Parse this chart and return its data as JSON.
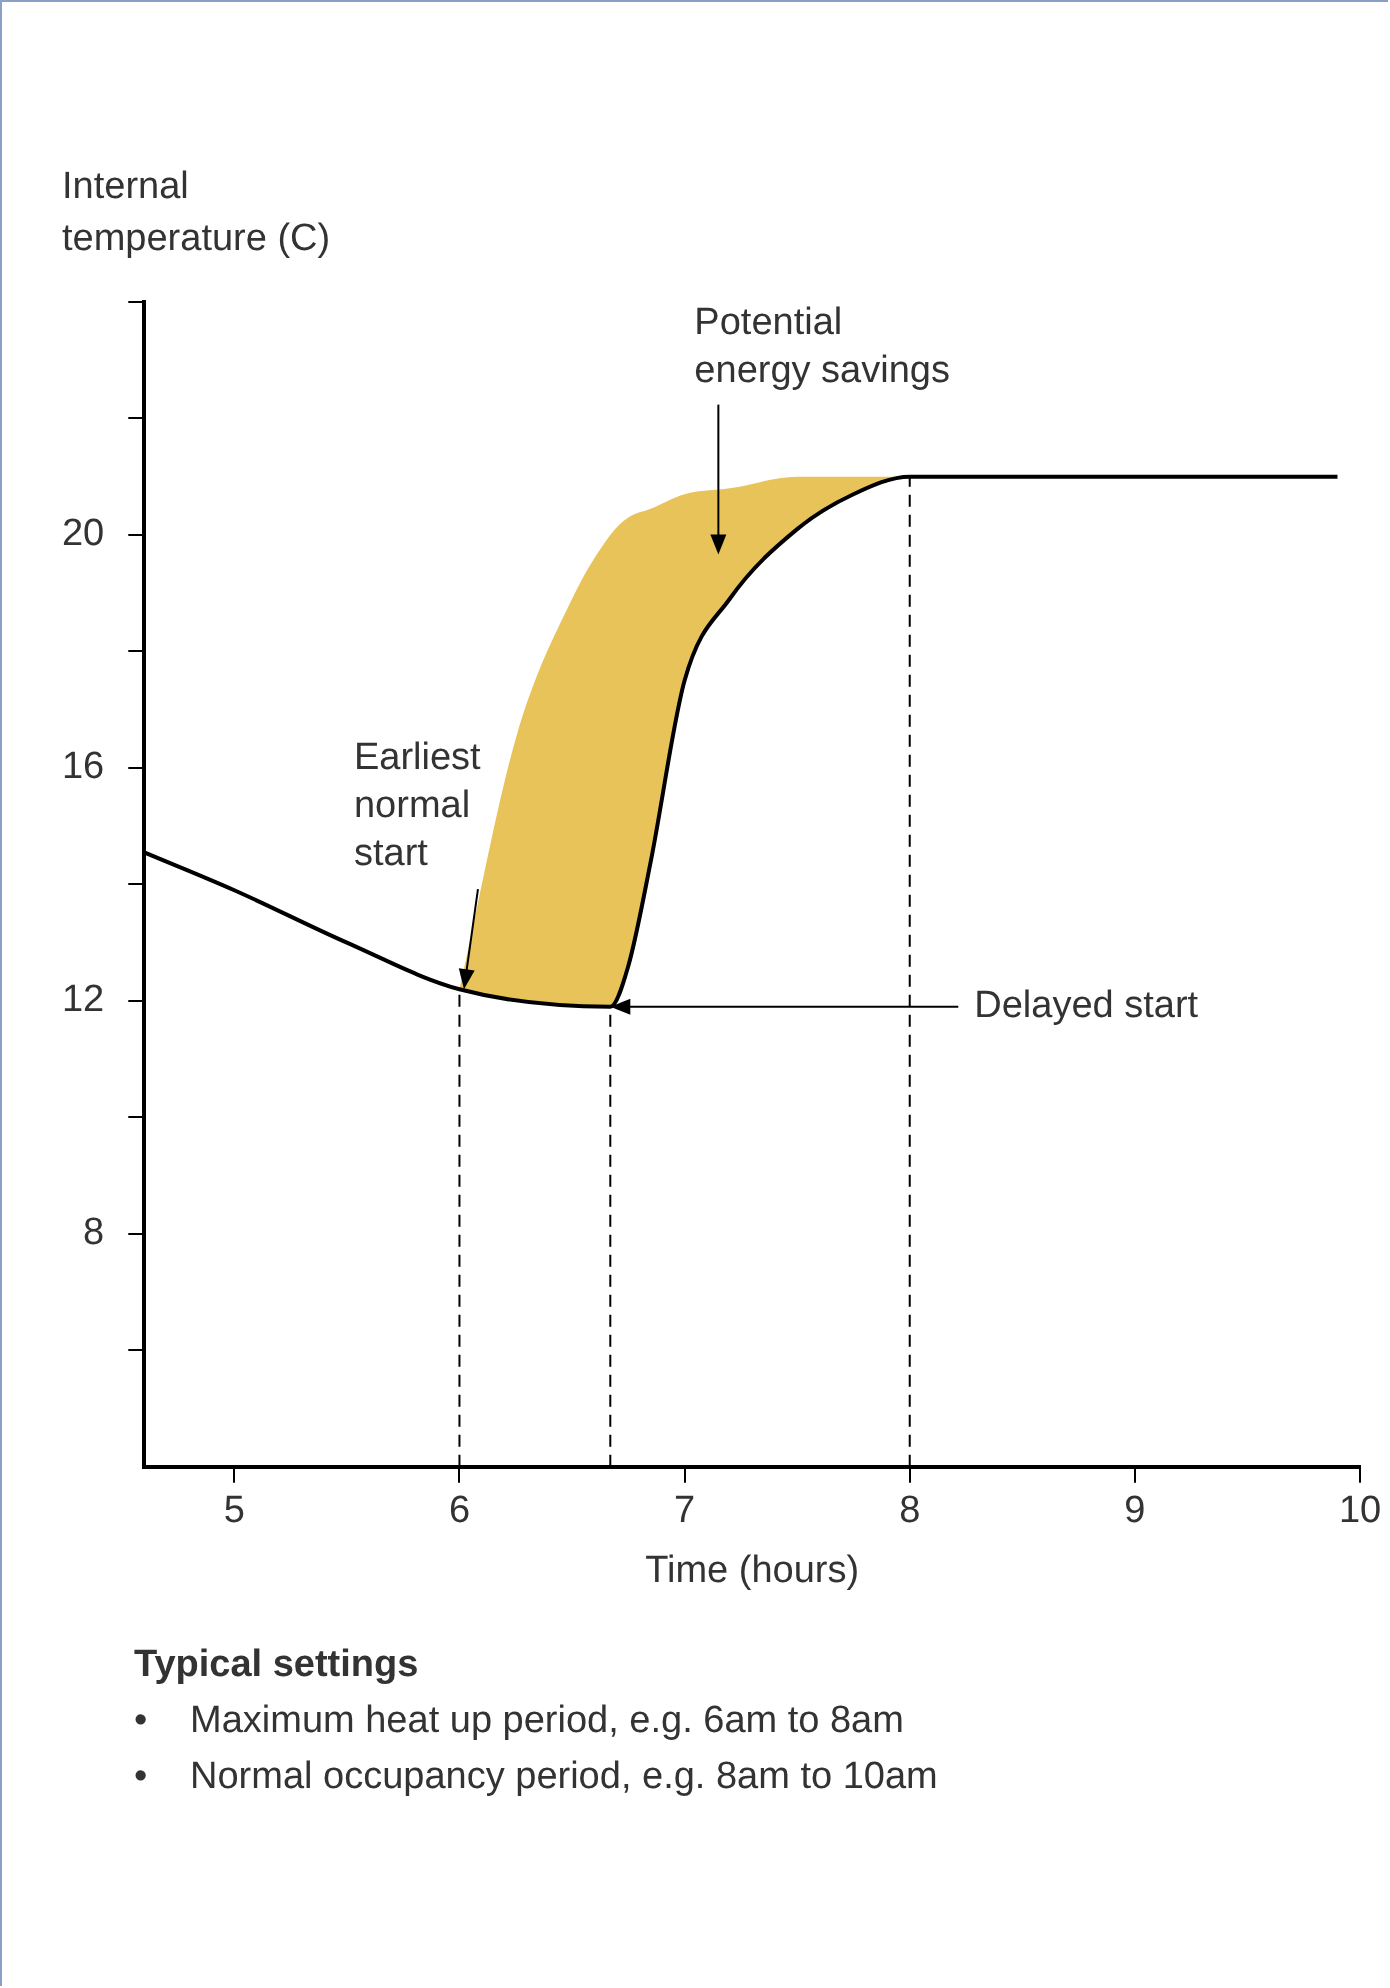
{
  "chart_data": {
    "type": "line",
    "ylabel": "Internal temperature (C)",
    "xlabel": "Time (hours)",
    "xlim": [
      4.6,
      10
    ],
    "xticks": [
      5,
      6,
      7,
      8,
      9,
      10
    ],
    "ylim": [
      4,
      24
    ],
    "yticks": [
      {
        "value": 6,
        "label": null
      },
      8,
      {
        "value": 10,
        "label": null
      },
      12,
      {
        "value": 14,
        "label": null
      },
      16,
      {
        "value": 18,
        "label": null
      },
      20,
      {
        "value": 22,
        "label": null
      },
      {
        "value": 24,
        "label": null
      }
    ],
    "grid": false,
    "legend": false,
    "marker": "none",
    "series": [
      {
        "color": "#000000",
        "x": [
          4.6,
          5,
          5.5,
          6,
          6.67,
          6.75,
          6.85,
          7,
          7.2,
          7.5,
          7.75,
          8,
          9.9
        ],
        "values": [
          14.55,
          13.9,
          13.0,
          12.2,
          11.9,
          12.6,
          14.4,
          17.5,
          18.9,
          20.1,
          20.7,
          21,
          21
        ]
      },
      {
        "type": "area",
        "color": "#e8c35a",
        "x": [
          6,
          6.25,
          6.5,
          6.67,
          6.75,
          6.85,
          7,
          7.2,
          7.5,
          7.75,
          8
        ],
        "values": [
          12.2,
          16.5,
          18.9,
          20.0,
          20.3,
          20.45,
          20.7,
          20.8,
          21.0,
          21.0,
          21
        ]
      }
    ],
    "ref_lines": [
      {
        "axis": "x",
        "value": 6,
        "line_style": "dashed"
      },
      {
        "axis": "x",
        "value": 6.67,
        "line_style": "dashed"
      },
      {
        "axis": "x",
        "value": 8,
        "line_style": "dashed"
      }
    ],
    "annotations": [
      "Potential\nenergy savings",
      {
        "text": "Earliest\nnormal\nstart",
        "x": 6.02,
        "y": 12.2
      },
      {
        "text": "Delayed start",
        "x": 6.67,
        "y": 11.9
      },
      "Typical settings",
      "• Maximum heat up period, e.g. 6am to 8am",
      "• Normal occupancy period, e.g. 8am to 10am"
    ]
  }
}
